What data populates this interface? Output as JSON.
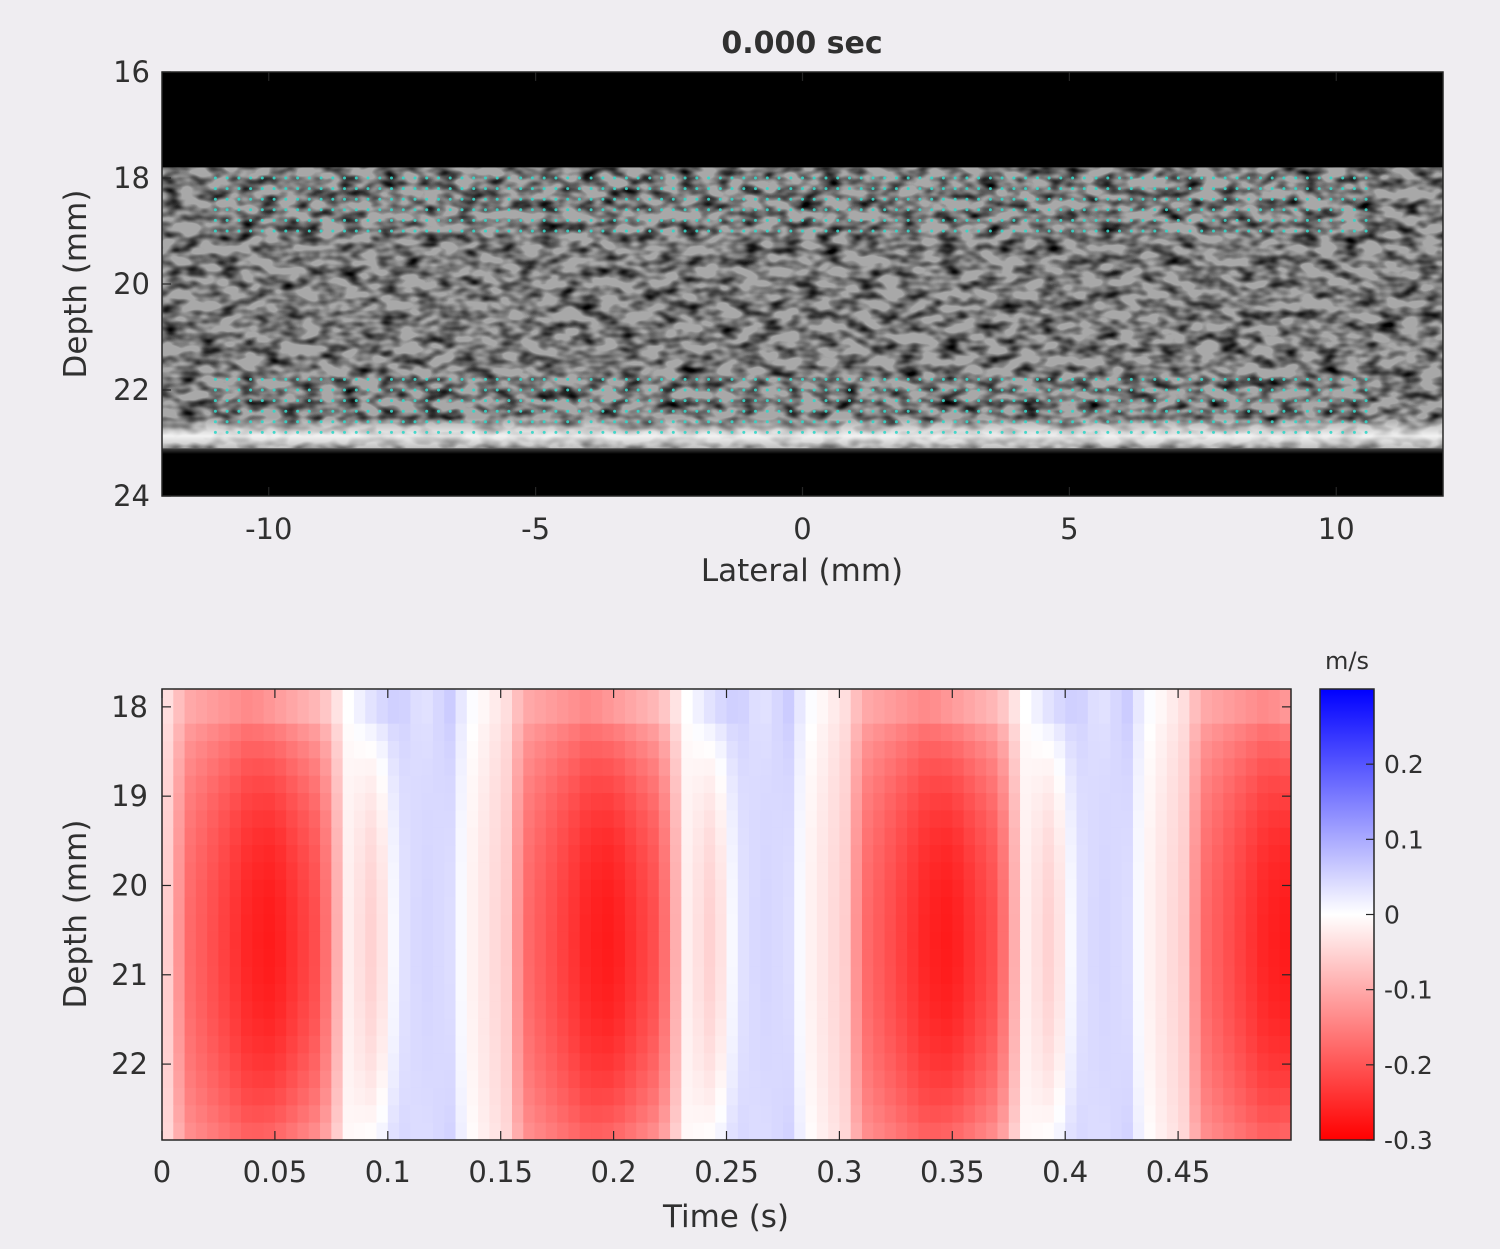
{
  "chart_data": [
    {
      "type": "heatmap",
      "title": "0.000 sec",
      "xlabel": "Lateral (mm)",
      "ylabel": "Depth (mm)",
      "xlim": [
        -12,
        12
      ],
      "ylim": [
        16,
        24
      ],
      "y_reversed": true,
      "x_ticks": [
        -10,
        -5,
        0,
        5,
        10
      ],
      "x_tick_labels": [
        "-10",
        "-5",
        "0",
        "5",
        "10"
      ],
      "y_ticks": [
        16,
        18,
        20,
        22,
        24
      ],
      "y_tick_labels": [
        "16",
        "18",
        "20",
        "22",
        "24"
      ],
      "colormap": "gray",
      "overlay_color": "#33d6c8",
      "overlay_rows_mm": [
        18.0,
        18.2,
        18.4,
        18.6,
        18.8,
        19.0,
        21.8,
        22.0,
        22.2,
        22.4,
        22.6,
        22.8
      ],
      "overlay_x_range_mm": [
        -11,
        10.6
      ],
      "tissue_depth_mm": [
        17.8,
        23.1
      ]
    },
    {
      "type": "heatmap",
      "xlabel": "Time (s)",
      "ylabel": "Depth (mm)",
      "xlim": [
        0,
        0.5
      ],
      "ylim": [
        17.8,
        22.85
      ],
      "y_reversed": true,
      "x_ticks": [
        0,
        0.05,
        0.1,
        0.15,
        0.2,
        0.25,
        0.3,
        0.35,
        0.4,
        0.45
      ],
      "x_tick_labels": [
        "0",
        "0.05",
        "0.1",
        "0.15",
        "0.2",
        "0.25",
        "0.3",
        "0.35",
        "0.4",
        "0.45"
      ],
      "y_ticks": [
        18,
        19,
        20,
        21,
        22
      ],
      "y_tick_labels": [
        "18",
        "19",
        "20",
        "21",
        "22"
      ],
      "colorbar": {
        "label": "m/s",
        "range": [
          -0.3,
          0.3
        ],
        "ticks": [
          0.2,
          0.1,
          0,
          -0.1,
          -0.2,
          -0.3
        ],
        "tick_labels": [
          "0.2",
          "0.1",
          "0",
          "-0.1",
          "-0.2",
          "-0.3"
        ],
        "color_min": "#ff0000",
        "color_zero": "#ffffff",
        "color_max": "#0000ff"
      },
      "period_s": 0.15,
      "cycle_profile": {
        "phase_fraction": [
          0,
          0.02,
          0.07,
          0.26,
          0.33,
          0.47,
          0.55,
          0.63,
          0.7,
          0.77,
          0.85,
          0.9,
          1
        ],
        "velocity_mid_ms": [
          -0.05,
          -0.06,
          -0.17,
          -0.26,
          -0.27,
          -0.2,
          -0.02,
          -0.06,
          0.03,
          0.05,
          0.04,
          -0.01,
          -0.05
        ],
        "velocity_edge_ms": [
          -0.03,
          -0.04,
          -0.1,
          -0.14,
          -0.12,
          -0.08,
          0.0,
          0.04,
          0.06,
          0.03,
          0.06,
          0.01,
          -0.03
        ]
      }
    }
  ]
}
